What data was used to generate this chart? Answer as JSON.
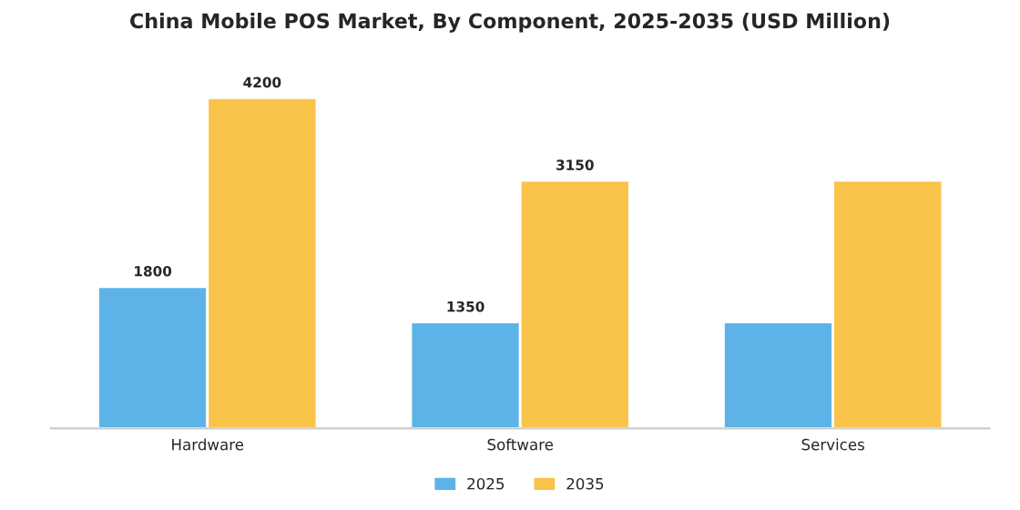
{
  "chart_data": {
    "type": "bar",
    "title": "China Mobile POS Market, By Component, 2025-2035 (USD Million)",
    "categories": [
      "Hardware",
      "Software",
      "Services"
    ],
    "series": [
      {
        "name": "2025",
        "color": "#5db3e8",
        "values": [
          1800,
          1350,
          1350
        ],
        "value_labels": [
          "1800",
          "1350",
          null
        ]
      },
      {
        "name": "2035",
        "color": "#f9c34a",
        "values": [
          4200,
          3150,
          3150
        ],
        "value_labels": [
          "4200",
          "3150",
          null
        ]
      }
    ],
    "legend": "bottom",
    "grid": false
  }
}
